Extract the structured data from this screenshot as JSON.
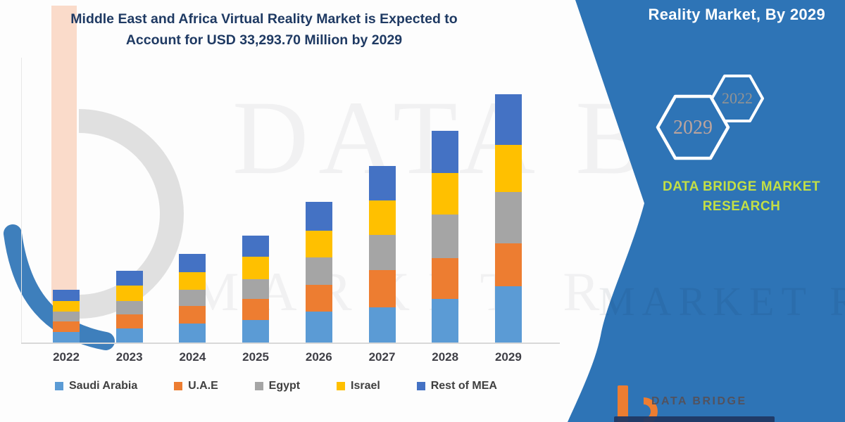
{
  "title": {
    "line1": "Middle East and Africa Virtual Reality Market is Expected to",
    "line2": "Account for USD 33,293.70 Million by 2029"
  },
  "side_panel": {
    "heading": "Reality Market, By 2029",
    "hexagon_large": "2029",
    "hexagon_small": "2022",
    "brand_line1": "DATA BRIDGE MARKET",
    "brand_line2": "RESEARCH"
  },
  "watermark": {
    "big_text": "DATA BRIDGE",
    "small_text": "MARKET RESEARCH",
    "panel_text": "MARKET RESE"
  },
  "footer_logo": {
    "brand": "DATA BRIDGE"
  },
  "colors": {
    "panel_blue": "#2E74B6",
    "title_navy": "#1F3A63",
    "brand_green": "#C3DF45",
    "logo_orange": "#ED7D31",
    "logo_navy": "#203864",
    "axis_gray": "#D9D9D9",
    "label_gray": "#3F3F46"
  },
  "chart_data": {
    "type": "bar",
    "stacked": true,
    "title": "Middle East and Africa Virtual Reality Market is Expected to Account for USD 33,293.70 Million by 2029",
    "unit": "USD Million",
    "categories": [
      "2022",
      "2023",
      "2024",
      "2025",
      "2026",
      "2027",
      "2028",
      "2029"
    ],
    "series": [
      {
        "name": "Saudi Arabia",
        "color": "#5B9BD5",
        "values": [
          1415,
          1886,
          2547,
          3018,
          4150,
          4716,
          5848,
          7546
        ]
      },
      {
        "name": "U.A.E",
        "color": "#ED7D31",
        "values": [
          1415,
          1886,
          2358,
          2830,
          3584,
          4999,
          5471,
          5753
        ]
      },
      {
        "name": "Egypt",
        "color": "#A5A5A5",
        "values": [
          1320,
          1792,
          2169,
          2641,
          3678,
          4716,
          5848,
          6885
        ]
      },
      {
        "name": "Israel",
        "color": "#FFC000",
        "values": [
          1415,
          2075,
          2358,
          3018,
          3584,
          4622,
          5565,
          6319
        ]
      },
      {
        "name": "Rest of MEA",
        "color": "#4472C4",
        "values": [
          1509,
          1981,
          2452,
          2830,
          3867,
          4622,
          5659,
          6791
        ]
      }
    ],
    "implied_total_2029": 33293.7,
    "values_note": "segment values estimated from bar heights; 2029 total anchored to title figure",
    "y_axis_visible": false,
    "gridlines": false,
    "legend_position": "bottom"
  }
}
